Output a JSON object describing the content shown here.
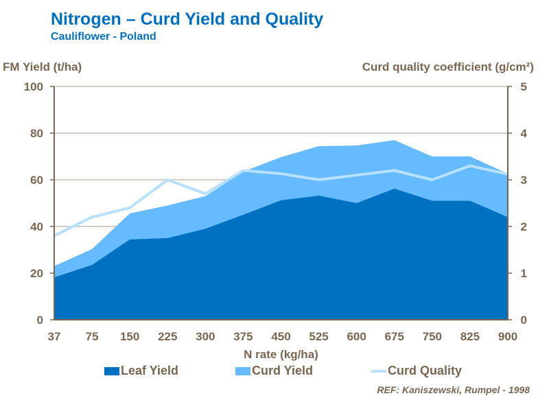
{
  "chart_data": {
    "type": "area",
    "title": "Nitrogen – Curd Yield and Quality",
    "subtitle": "Cauliflower - Poland",
    "xlabel": "N rate (kg/ha)",
    "ylabel": "FM Yield (t/ha)",
    "y2label": "Curd quality coefficient (g/cm²)",
    "categories": [
      "37",
      "75",
      "150",
      "225",
      "300",
      "375",
      "450",
      "525",
      "600",
      "675",
      "750",
      "825",
      "900"
    ],
    "ylim": [
      0,
      100
    ],
    "yticks": [
      "0",
      "20",
      "40",
      "60",
      "80",
      "100"
    ],
    "y2lim": [
      0,
      5
    ],
    "y2ticks": [
      "0",
      "1",
      "2",
      "3",
      "4",
      "5"
    ],
    "grid": true,
    "legend_position": "bottom",
    "series": [
      {
        "name": "Leaf Yield",
        "type": "area",
        "axis": "left",
        "color": "#0070c0",
        "values": [
          18.2,
          23.5,
          34.4,
          35,
          39,
          45,
          51.2,
          53.2,
          50,
          56.2,
          51,
          51,
          44
        ]
      },
      {
        "name": "Curd Yield",
        "type": "area",
        "axis": "left",
        "color": "#66bbff",
        "values": [
          23,
          30.3,
          45.6,
          49,
          53,
          63.5,
          69.7,
          74.4,
          74.7,
          77,
          70,
          70,
          62.6
        ]
      },
      {
        "name": "Curd Quality",
        "type": "line",
        "axis": "right",
        "color": "#b8e0ff",
        "values": [
          1.8,
          2.2,
          2.4,
          3.0,
          2.7,
          3.2,
          3.13,
          3.0,
          3.1,
          3.2,
          3.0,
          3.3,
          3.12
        ]
      }
    ],
    "reference": "REF: Kaniszewski, Rumpel - 1998"
  }
}
